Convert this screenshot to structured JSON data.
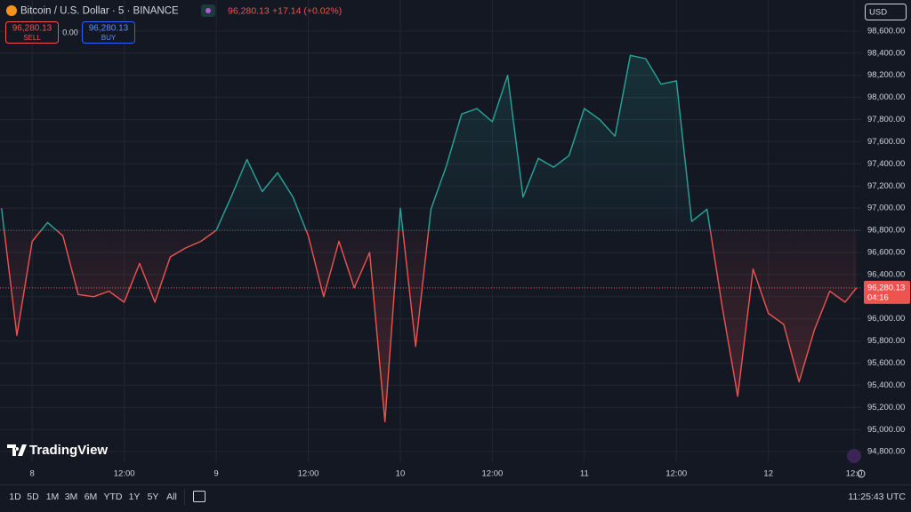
{
  "header": {
    "symbol": "Bitcoin / U.S. Dollar · 5 · BINANCE",
    "price": "96,280.13",
    "change": "+17.14 (+0.02%)"
  },
  "trade": {
    "sell_price": "96,280.13",
    "sell": "SELL",
    "spread": "0.00",
    "buy_price": "96,280.13",
    "buy": "BUY"
  },
  "currency": "USD",
  "logo": "TradingView",
  "chart_data": {
    "type": "baseline",
    "x": [
      -4,
      -2,
      0,
      2,
      4,
      6,
      8,
      10,
      12,
      14,
      16,
      18,
      20,
      22,
      24,
      26,
      28,
      30,
      32,
      34,
      36,
      38,
      40,
      42,
      44,
      46,
      48,
      50,
      52,
      54,
      56,
      58,
      60,
      62,
      64,
      66,
      68,
      70,
      72,
      74,
      76,
      78,
      80,
      82,
      84,
      86,
      88,
      90,
      92,
      94,
      96,
      98,
      100,
      102,
      104,
      106,
      107.5
    ],
    "values": [
      97000,
      95850,
      96700,
      96870,
      96750,
      96220,
      96200,
      96250,
      96150,
      96500,
      96150,
      96560,
      96640,
      96700,
      96800,
      97110,
      97440,
      97150,
      97320,
      97100,
      96750,
      96200,
      96700,
      96280,
      96600,
      95070,
      97000,
      95750,
      96990,
      97380,
      97850,
      97900,
      97780,
      98200,
      97100,
      97450,
      97370,
      97475,
      97900,
      97800,
      97650,
      98380,
      98350,
      98120,
      98150,
      96880,
      96990,
      96100,
      95300,
      96450,
      96050,
      95950,
      95430,
      95900,
      96250,
      96150,
      96280.13
    ],
    "baseline": 96800,
    "top_color": "#26a69a",
    "bottom_color": "#ef5350",
    "xlim": [
      -4.2,
      108.1
    ],
    "ylim": [
      94705,
      98880
    ],
    "xticks": [
      {
        "value": 0,
        "label": "8"
      },
      {
        "value": 12,
        "label": "12:00"
      },
      {
        "value": 24,
        "label": "9"
      },
      {
        "value": 36,
        "label": "12:00"
      },
      {
        "value": 48,
        "label": "10"
      },
      {
        "value": 60,
        "label": "12:00"
      },
      {
        "value": 72,
        "label": "11"
      },
      {
        "value": 84,
        "label": "12:00"
      },
      {
        "value": 96,
        "label": "12"
      },
      {
        "value": 108,
        "label": "12:0"
      }
    ],
    "yticks": [
      {
        "value": 94800,
        "label": "94,800.00"
      },
      {
        "value": 95000,
        "label": "95,000.00"
      },
      {
        "value": 95200,
        "label": "95,200.00"
      },
      {
        "value": 95400,
        "label": "95,400.00"
      },
      {
        "value": 95600,
        "label": "95,600.00"
      },
      {
        "value": 95800,
        "label": "95,800.00"
      },
      {
        "value": 96000,
        "label": "96,000.00"
      },
      {
        "value": 96200,
        "label": "96,200.00"
      },
      {
        "value": 96400,
        "label": "96,400.00"
      },
      {
        "value": 96600,
        "label": "96,600.00"
      },
      {
        "value": 96800,
        "label": "96,800.00"
      },
      {
        "value": 97000,
        "label": "97,000.00"
      },
      {
        "value": 97200,
        "label": "97,200.00"
      },
      {
        "value": 97400,
        "label": "97,400.00"
      },
      {
        "value": 97600,
        "label": "97,600.00"
      },
      {
        "value": 97800,
        "label": "97,800.00"
      },
      {
        "value": 98000,
        "label": "98,000.00"
      },
      {
        "value": 98200,
        "label": "98,200.00"
      },
      {
        "value": 98400,
        "label": "98,400.00"
      },
      {
        "value": 98600,
        "label": "98,600.00"
      }
    ],
    "grid": true,
    "last_price": {
      "value": 96280.13,
      "label": "96,280.13"
    },
    "countdown": "04:16"
  },
  "toolbar": {
    "ranges": [
      "1D",
      "5D",
      "1M",
      "3M",
      "6M",
      "YTD",
      "1Y",
      "5Y",
      "All"
    ],
    "time": "11:25:43 UTC"
  }
}
